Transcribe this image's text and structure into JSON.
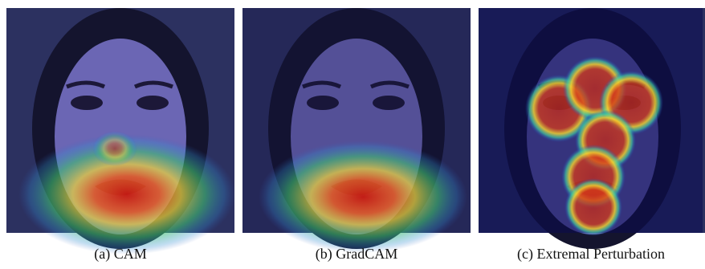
{
  "panels": [
    {
      "caption": "(a) CAM"
    },
    {
      "caption": "(b) GradCAM"
    },
    {
      "caption": "(c) Extremal Perturbation"
    }
  ]
}
